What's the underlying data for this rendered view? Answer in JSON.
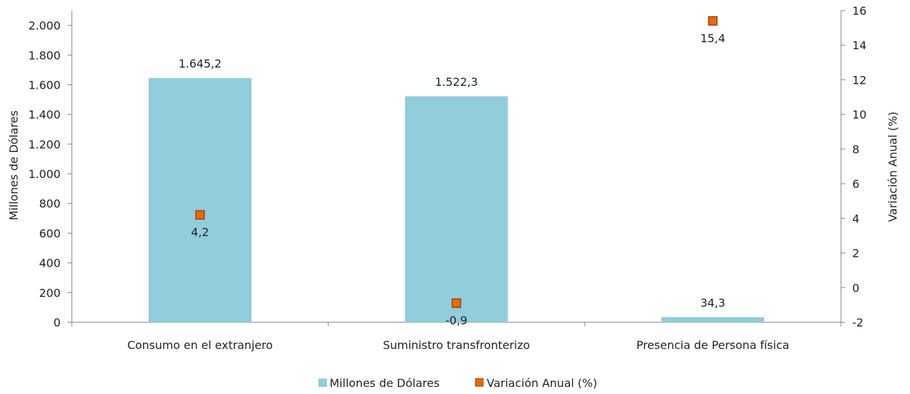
{
  "chart_data": {
    "type": "bar",
    "categories": [
      "Consumo en el extranjero",
      "Suministro transfronterizo",
      "Presencia de Persona física"
    ],
    "series": [
      {
        "name": "Millones de Dólares",
        "type": "bar",
        "axis": "left",
        "color": "#92CDDC",
        "values": [
          1645.2,
          1522.3,
          34.3
        ],
        "labels": [
          "1.645,2",
          "1.522,3",
          "34,3"
        ]
      },
      {
        "name": "Variación Anual (%)",
        "type": "marker",
        "marker": "square",
        "axis": "right",
        "color": "#E46C0A",
        "values": [
          4.2,
          -0.9,
          15.4
        ],
        "labels": [
          "4,2",
          "-0,9",
          "15,4"
        ]
      }
    ],
    "y_left": {
      "label": "Millones de Dólares",
      "lim": [
        0,
        2100
      ],
      "ticks": [
        0,
        200,
        400,
        600,
        800,
        1000,
        1200,
        1400,
        1600,
        1800,
        2000
      ],
      "tick_labels": [
        "0",
        "200",
        "400",
        "600",
        "800",
        "1.000",
        "1.200",
        "1.400",
        "1.600",
        "1.800",
        "2.000"
      ]
    },
    "y_right": {
      "label": "Variación Anual (%)",
      "lim": [
        -2,
        16
      ],
      "ticks": [
        -2,
        0,
        2,
        4,
        6,
        8,
        10,
        12,
        14,
        16
      ],
      "tick_labels": [
        "-2",
        "0",
        "2",
        "4",
        "6",
        "8",
        "10",
        "12",
        "14",
        "16"
      ]
    },
    "grid": false,
    "legend": "bottom-center",
    "axis_color": "#7F7F7F"
  }
}
